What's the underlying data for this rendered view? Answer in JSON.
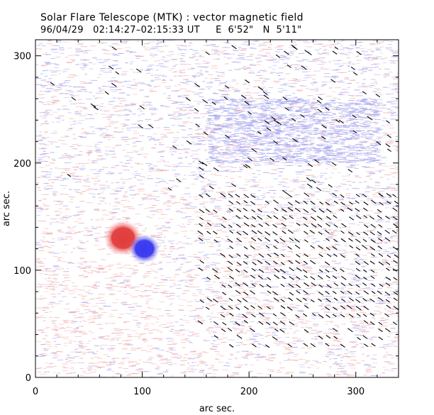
{
  "header": {
    "title": "Solar Flare Telescope (MTK) : vector magnetic field",
    "date_time": "96/04/29   02:14:27–02:15:33 UT",
    "position": "E  6'52\"   N  5'11\""
  },
  "colors": {
    "positive_polarity": "#e04040",
    "negative_polarity": "#3c3cf0",
    "background_positive": "#f2b0b0",
    "background_negative": "#a8a8f0",
    "vector": "#000000",
    "frame": "#000000"
  },
  "chart_data": {
    "type": "heatmap",
    "title": "Solar Flare Telescope (MTK) : vector magnetic field",
    "xlabel": "arc sec.",
    "ylabel": "arc sec.",
    "xlim": [
      0,
      340
    ],
    "ylim": [
      0,
      315
    ],
    "xticks": [
      0,
      100,
      200,
      300
    ],
    "yticks": [
      0,
      100,
      200,
      300
    ],
    "xtick_labels": [
      "0",
      "100",
      "200",
      "300"
    ],
    "ytick_labels": [
      "0",
      "100",
      "200",
      "300"
    ],
    "features": [
      {
        "name": "positive-polarity-spot",
        "polarity": "positive",
        "x": 82,
        "y": 130,
        "radius": 11
      },
      {
        "name": "negative-polarity-spot",
        "polarity": "negative",
        "x": 102,
        "y": 120,
        "radius": 9
      }
    ],
    "vector_region": {
      "x_min": 155,
      "x_max": 340,
      "y_min": 30,
      "y_max": 170,
      "spacing": 7,
      "angle_deg": -35
    },
    "vector_field_note": "transverse field vectors drawn as short line segments"
  }
}
